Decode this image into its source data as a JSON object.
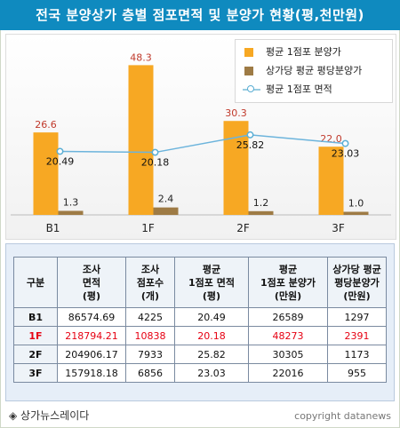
{
  "title": "전국 분양상가 층별 점포면적 및 분양가 현황(평,천만원)",
  "colors": {
    "bar_area": "#f7a823",
    "bar_price": "#9e7b45",
    "line": "#6cb4dc",
    "title_bg": "#0f8abf",
    "highlight": "#e60012"
  },
  "chart_data": {
    "type": "bar",
    "title": "",
    "categories": [
      "B1",
      "1F",
      "2F",
      "3F"
    ],
    "series": [
      {
        "name": "평균 1점포 분양가",
        "type": "bar",
        "values": [
          26.6,
          48.3,
          30.3,
          22.0
        ],
        "labels": [
          "26.6",
          "48.3",
          "30.3",
          "22.0"
        ]
      },
      {
        "name": "상가당 평균 평당분양가",
        "type": "bar",
        "values": [
          1.3,
          2.4,
          1.2,
          1.0
        ],
        "labels": [
          "1.3",
          "2.4",
          "1.2",
          "1.0"
        ]
      },
      {
        "name": "평균 1점포 면적",
        "type": "line",
        "values": [
          20.49,
          20.18,
          25.82,
          23.03
        ],
        "labels": [
          "20.49",
          "20.18",
          "25.82",
          "23.03"
        ]
      }
    ],
    "ylim": [
      0,
      55
    ],
    "grid": false,
    "legend": "top-right"
  },
  "table": {
    "headers": [
      "구분",
      "조사\n면적\n(평)",
      "조사\n점포수\n(개)",
      "평균\n1점포 면적\n(평)",
      "평균\n1점포 분양가\n(만원)",
      "상가당 평균\n평당분양가\n(만원)"
    ],
    "rows": [
      [
        "B1",
        "86574.69",
        "4225",
        "20.49",
        "26589",
        "1297"
      ],
      [
        "1F",
        "218794.21",
        "10838",
        "20.18",
        "48273",
        "2391"
      ],
      [
        "2F",
        "204906.17",
        "7933",
        "25.82",
        "30305",
        "1173"
      ],
      [
        "3F",
        "157918.18",
        "6856",
        "23.03",
        "22016",
        "955"
      ]
    ],
    "highlight_row": 1
  },
  "footer": {
    "source": "◈ 상가뉴스레이다",
    "copyright": "copyright datanews"
  }
}
